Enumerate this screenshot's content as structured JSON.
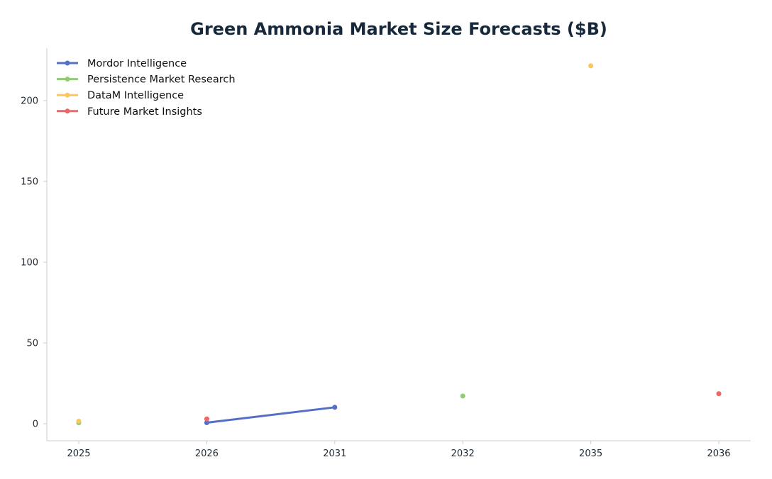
{
  "chart_data": {
    "type": "line",
    "title": "Green Ammonia Market Size Forecasts ($B)",
    "xlabel": "",
    "ylabel": "",
    "categories": [
      "2025",
      "2026",
      "2031",
      "2032",
      "2035",
      "2036"
    ],
    "ylim": [
      -10.5,
      232.5
    ],
    "yticks": [
      0,
      50,
      100,
      150,
      200
    ],
    "grid": false,
    "legend": "top-left",
    "series": [
      {
        "name": "Mordor Intelligence",
        "color": "#5470c6",
        "points": [
          {
            "x": "2026",
            "y": 0.7
          },
          {
            "x": "2031",
            "y": 10.2
          }
        ]
      },
      {
        "name": "Persistence Market Research",
        "color": "#91cc75",
        "points": [
          {
            "x": "2025",
            "y": 0.6
          },
          {
            "x": "2032",
            "y": 17.2
          }
        ]
      },
      {
        "name": "DataM Intelligence",
        "color": "#fac858",
        "points": [
          {
            "x": "2025",
            "y": 1.6
          },
          {
            "x": "2035",
            "y": 221.6
          }
        ]
      },
      {
        "name": "Future Market Insights",
        "color": "#ee6666",
        "points": [
          {
            "x": "2026",
            "y": 3.0
          },
          {
            "x": "2036",
            "y": 18.6
          }
        ]
      }
    ]
  }
}
